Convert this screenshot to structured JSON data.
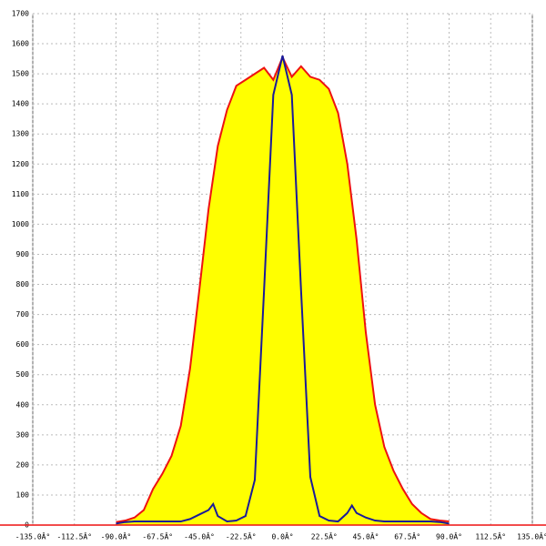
{
  "chart_data": {
    "type": "area",
    "xlim": [
      -135,
      135
    ],
    "xticks": [
      {
        "value": -135,
        "label": "-135.0Â°"
      },
      {
        "value": -112.5,
        "label": "-112.5Â°"
      },
      {
        "value": -90,
        "label": "-90.0Â°"
      },
      {
        "value": -67.5,
        "label": "-67.5Â°"
      },
      {
        "value": -45,
        "label": "-45.0Â°"
      },
      {
        "value": -22.5,
        "label": "-22.5Â°"
      },
      {
        "value": 0,
        "label": "0.0Â°"
      },
      {
        "value": 22.5,
        "label": "22.5Â°"
      },
      {
        "value": 45,
        "label": "45.0Â°"
      },
      {
        "value": 67.5,
        "label": "67.5Â°"
      },
      {
        "value": 90,
        "label": "90.0Â°"
      },
      {
        "value": 112.5,
        "label": "112.5Â°"
      },
      {
        "value": 135,
        "label": "135.0Â°"
      }
    ],
    "ylim": [
      0,
      1700
    ],
    "yticks": [
      0,
      100,
      200,
      300,
      400,
      500,
      600,
      700,
      800,
      900,
      1000,
      1100,
      1200,
      1300,
      1400,
      1500,
      1600,
      1700
    ],
    "grid": true,
    "series": [
      {
        "color": "#ee1111",
        "fill": "#ffff00",
        "x": [
          -90,
          -85,
          -80,
          -75,
          -70,
          -65,
          -60,
          -55,
          -50,
          -45,
          -40,
          -35,
          -30,
          -25,
          -20,
          -15,
          -10,
          -5,
          0,
          5,
          10,
          15,
          20,
          25,
          30,
          35,
          40,
          45,
          50,
          55,
          60,
          65,
          70,
          75,
          80,
          85,
          90
        ],
        "values": [
          10,
          15,
          25,
          50,
          120,
          170,
          230,
          330,
          520,
          780,
          1050,
          1260,
          1380,
          1460,
          1480,
          1500,
          1520,
          1480,
          1555,
          1490,
          1525,
          1490,
          1480,
          1450,
          1370,
          1200,
          950,
          640,
          400,
          260,
          180,
          120,
          70,
          40,
          20,
          15,
          12
        ]
      },
      {
        "color": "#1a1a99",
        "fill": null,
        "x": [
          -90,
          -85,
          -80,
          -75,
          -70,
          -65,
          -60,
          -55,
          -50,
          -45,
          -40,
          -37.5,
          -35,
          -30,
          -25,
          -20,
          -15,
          -10,
          -5,
          0,
          5,
          10,
          15,
          20,
          25,
          30,
          35,
          37.5,
          40,
          45,
          50,
          55,
          60,
          65,
          70,
          75,
          80,
          85,
          90
        ],
        "values": [
          5,
          10,
          12,
          12,
          12,
          12,
          12,
          12,
          20,
          35,
          50,
          70,
          30,
          12,
          15,
          30,
          150,
          780,
          1430,
          1560,
          1430,
          780,
          160,
          30,
          15,
          12,
          40,
          65,
          40,
          25,
          15,
          12,
          12,
          12,
          12,
          12,
          12,
          10,
          5
        ]
      }
    ]
  }
}
